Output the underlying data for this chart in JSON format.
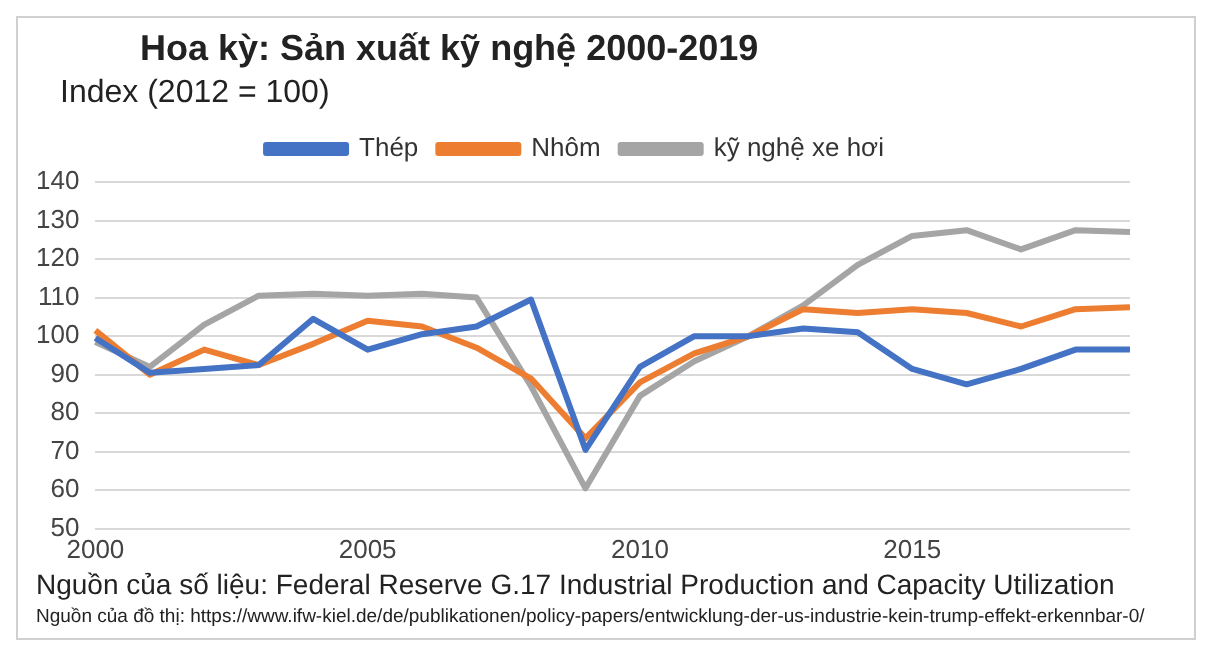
{
  "chart_data": {
    "type": "line",
    "title": "Hoa kỳ: Sản xuất kỹ nghệ 2000-2019",
    "subtitle": "Index (2012 = 100)",
    "categories": [
      "2000",
      null,
      null,
      null,
      null,
      "2005",
      null,
      null,
      null,
      null,
      "2010",
      null,
      null,
      null,
      null,
      "2015",
      null,
      null,
      null,
      null
    ],
    "series": [
      {
        "name": "Thép",
        "color": "#4472c4",
        "values": [
          99.5,
          90.5,
          91.5,
          92.5,
          104.5,
          96.5,
          100.5,
          102.5,
          109.5,
          70.5,
          92,
          100,
          100,
          102,
          101,
          91.5,
          87.5,
          91.5,
          96.5,
          96.5
        ]
      },
      {
        "name": "Nhôm",
        "color": "#ed7d31",
        "values": [
          101.5,
          90,
          96.5,
          92.5,
          98,
          104,
          102.5,
          97,
          89,
          73.5,
          88,
          95.5,
          100,
          107,
          106,
          107,
          106,
          102.5,
          107,
          107.5
        ]
      },
      {
        "name": "kỹ nghệ xe hơi",
        "color": "#a5a5a5",
        "values": [
          98.5,
          92,
          103,
          110.5,
          111,
          110.5,
          111,
          110,
          87,
          60.5,
          84.5,
          93.5,
          100,
          108,
          118.5,
          126,
          127.5,
          122.5,
          127.5,
          127
        ]
      }
    ],
    "ylim": [
      50,
      140
    ],
    "yticks": [
      50,
      60,
      70,
      80,
      90,
      100,
      110,
      120,
      130,
      140
    ],
    "grid": "y",
    "legend": "top",
    "marker": "none",
    "annotations": [
      "Nguồn của số liệu: Federal Reserve G.17 Industrial Production and Capacity Utilization",
      "Nguồn của đồ thị: https://www.ifw-kiel.de/de/publikationen/policy-papers/entwicklung-der-us-industrie-kein-trump-effekt-erkennbar-0/"
    ]
  }
}
